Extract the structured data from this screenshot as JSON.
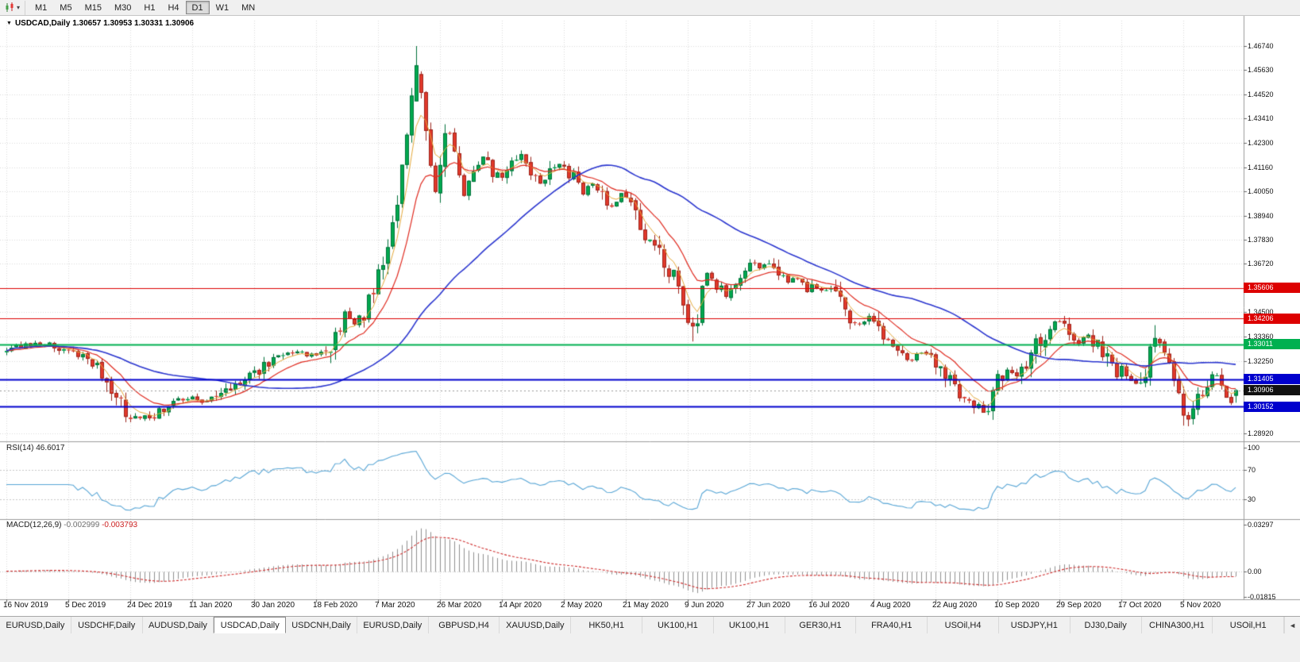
{
  "toolbar": {
    "timeframes": [
      "M1",
      "M5",
      "M15",
      "M30",
      "H1",
      "H4",
      "D1",
      "W1",
      "MN"
    ],
    "active_timeframe": "D1",
    "chart_menu_icon": "candlestick-chart-icon",
    "dropdown_arrow": "▾"
  },
  "chart": {
    "collapse_arrow": "▼",
    "title": "USDCAD,Daily",
    "ohlc_text": "1.30657 1.30953 1.30331 1.30906"
  },
  "price_axis_ticks": [
    "1.46740",
    "1.45630",
    "1.44520",
    "1.43410",
    "1.42300",
    "1.41160",
    "1.40050",
    "1.38940",
    "1.37830",
    "1.36720",
    "1.34500",
    "1.33360",
    "1.32250",
    "1.28920"
  ],
  "price_levels": [
    {
      "value": "1.35606",
      "color": "#dd0000",
      "line_width": 1
    },
    {
      "value": "1.34206",
      "color": "#dd0000",
      "line_width": 1
    },
    {
      "value": "1.33011",
      "color": "#00b050",
      "line_width": 2
    },
    {
      "value": "1.31405",
      "color": "#0000cd",
      "line_width": 2
    },
    {
      "value": "1.30152",
      "color": "#0000cd",
      "line_width": 2
    }
  ],
  "current_price": {
    "value": "1.30906",
    "label_bg": "#111111"
  },
  "rsi": {
    "label": "RSI(14)",
    "value": "46.6017",
    "axis_ticks": [
      "100",
      "70",
      "30"
    ],
    "dashed_levels": [
      70,
      30
    ],
    "line_color": "#58a6d6"
  },
  "macd": {
    "label": "MACD(12,26,9)",
    "value_main": "-0.002999",
    "value_signal": "-0.003793",
    "axis_ticks": [
      "0.03297",
      "0.00",
      "-0.01815"
    ],
    "histogram_color": "#8f8f8f",
    "signal_color": "#cf2d2d"
  },
  "date_axis": [
    "16 Nov 2019",
    "5 Dec 2019",
    "24 Dec 2019",
    "11 Jan 2020",
    "30 Jan 2020",
    "18 Feb 2020",
    "7 Mar 2020",
    "26 Mar 2020",
    "14 Apr 2020",
    "2 May 2020",
    "21 May 2020",
    "9 Jun 2020",
    "27 Jun 2020",
    "16 Jul 2020",
    "4 Aug 2020",
    "22 Aug 2020",
    "10 Sep 2020",
    "29 Sep 2020",
    "17 Oct 2020",
    "5 Nov 2020"
  ],
  "bottom_tabs": {
    "items": [
      "EURUSD,Daily",
      "USDCHF,Daily",
      "AUDUSD,Daily",
      "USDCAD,Daily",
      "USDCNH,Daily",
      "EURUSD,Daily",
      "GBPUSD,H4",
      "XAUUSD,Daily",
      "HK50,H1",
      "UK100,H1",
      "UK100,H1",
      "GER30,H1",
      "FRA40,H1",
      "USOil,H4",
      "USDJPY,H1",
      "DJ30,Daily",
      "CHINA300,H1",
      "USOil,H1"
    ],
    "active_index": 3,
    "scroll_icon": "◄"
  },
  "chart_data": {
    "type": "candlestick",
    "symbol": "USDCAD",
    "timeframe": "Daily",
    "last_ohlc": {
      "open": 1.30657,
      "high": 1.30953,
      "low": 1.30331,
      "close": 1.30906
    },
    "price_range": [
      1.28556,
      1.47909
    ],
    "candle_count": 259,
    "up_color": "#00a94f",
    "up_border": "#00713a",
    "down_color": "#e2392b",
    "down_border": "#9c241c",
    "ma_fast_color": "#e5a93a",
    "ma_mid_color": "#e02b20",
    "ma_slow_color": "#2a35cf",
    "path_anchors": [
      [
        0,
        1.3265
      ],
      [
        3,
        1.3295
      ],
      [
        6,
        1.3305
      ],
      [
        9,
        1.33
      ],
      [
        12,
        1.3272
      ],
      [
        14,
        1.3262
      ],
      [
        17,
        1.3228
      ],
      [
        20,
        1.3165
      ],
      [
        23,
        1.3062
      ],
      [
        25,
        1.2985
      ],
      [
        27,
        1.2958
      ],
      [
        29,
        1.2962
      ],
      [
        31,
        1.2978
      ],
      [
        33,
        1.3008
      ],
      [
        36,
        1.3045
      ],
      [
        39,
        1.3052
      ],
      [
        42,
        1.3032
      ],
      [
        46,
        1.3092
      ],
      [
        50,
        1.314
      ],
      [
        54,
        1.32
      ],
      [
        57,
        1.3245
      ],
      [
        61,
        1.3264
      ],
      [
        65,
        1.3248
      ],
      [
        67,
        1.327
      ],
      [
        69,
        1.333
      ],
      [
        71,
        1.3446
      ],
      [
        73,
        1.339
      ],
      [
        75,
        1.344
      ],
      [
        76,
        1.351
      ],
      [
        78,
        1.363
      ],
      [
        80,
        1.378
      ],
      [
        82,
        1.398
      ],
      [
        83,
        1.41
      ],
      [
        84,
        1.423
      ],
      [
        85,
        1.442
      ],
      [
        86,
        1.456
      ],
      [
        87,
        1.448
      ],
      [
        88,
        1.428
      ],
      [
        89,
        1.41
      ],
      [
        90,
        1.401
      ],
      [
        91,
        1.412
      ],
      [
        92,
        1.43
      ],
      [
        93,
        1.427
      ],
      [
        94,
        1.415
      ],
      [
        95,
        1.408
      ],
      [
        96,
        1.399
      ],
      [
        97,
        1.404
      ],
      [
        98,
        1.411
      ],
      [
        100,
        1.417
      ],
      [
        102,
        1.41
      ],
      [
        104,
        1.406
      ],
      [
        106,
        1.413
      ],
      [
        108,
        1.417
      ],
      [
        110,
        1.41
      ],
      [
        112,
        1.404
      ],
      [
        114,
        1.409
      ],
      [
        116,
        1.413
      ],
      [
        117,
        1.41
      ],
      [
        119,
        1.406
      ],
      [
        121,
        1.399
      ],
      [
        123,
        1.405
      ],
      [
        125,
        1.398
      ],
      [
        127,
        1.394
      ],
      [
        129,
        1.399
      ],
      [
        130,
        1.397
      ],
      [
        132,
        1.39
      ],
      [
        134,
        1.382
      ],
      [
        136,
        1.375
      ],
      [
        138,
        1.368
      ],
      [
        140,
        1.362
      ],
      [
        141,
        1.356
      ],
      [
        142,
        1.348
      ],
      [
        143,
        1.342
      ],
      [
        144,
        1.338
      ],
      [
        145,
        1.343
      ],
      [
        146,
        1.356
      ],
      [
        147,
        1.362
      ],
      [
        149,
        1.358
      ],
      [
        151,
        1.353
      ],
      [
        153,
        1.359
      ],
      [
        155,
        1.365
      ],
      [
        156,
        1.368
      ],
      [
        158,
        1.365
      ],
      [
        160,
        1.368
      ],
      [
        162,
        1.362
      ],
      [
        164,
        1.358
      ],
      [
        166,
        1.361
      ],
      [
        168,
        1.356
      ],
      [
        169,
        1.358
      ],
      [
        171,
        1.354
      ],
      [
        173,
        1.357
      ],
      [
        175,
        1.35
      ],
      [
        177,
        1.342
      ],
      [
        179,
        1.34
      ],
      [
        181,
        1.343
      ],
      [
        182,
        1.339
      ],
      [
        184,
        1.333
      ],
      [
        186,
        1.33
      ],
      [
        188,
        1.326
      ],
      [
        190,
        1.323
      ],
      [
        192,
        1.327
      ],
      [
        194,
        1.323
      ],
      [
        195,
        1.32
      ],
      [
        197,
        1.316
      ],
      [
        199,
        1.31
      ],
      [
        201,
        1.306
      ],
      [
        203,
        1.303
      ],
      [
        205,
        1.3
      ],
      [
        207,
        1.306
      ],
      [
        208,
        1.313
      ],
      [
        210,
        1.318
      ],
      [
        212,
        1.316
      ],
      [
        214,
        1.322
      ],
      [
        216,
        1.329
      ],
      [
        218,
        1.335
      ],
      [
        220,
        1.34
      ],
      [
        221,
        1.341
      ],
      [
        223,
        1.335
      ],
      [
        225,
        1.331
      ],
      [
        227,
        1.334
      ],
      [
        229,
        1.329
      ],
      [
        231,
        1.323
      ],
      [
        233,
        1.316
      ],
      [
        234,
        1.318
      ],
      [
        236,
        1.313
      ],
      [
        238,
        1.311
      ],
      [
        239,
        1.315
      ],
      [
        240,
        1.328
      ],
      [
        241,
        1.334
      ],
      [
        242,
        1.33
      ],
      [
        243,
        1.325
      ],
      [
        244,
        1.318
      ],
      [
        245,
        1.312
      ],
      [
        246,
        1.306
      ],
      [
        247,
        1.299
      ],
      [
        248,
        1.2945
      ],
      [
        249,
        1.299
      ],
      [
        250,
        1.304
      ],
      [
        251,
        1.309
      ],
      [
        252,
        1.313
      ],
      [
        253,
        1.316
      ],
      [
        254,
        1.314
      ],
      [
        255,
        1.311
      ],
      [
        256,
        1.3075
      ],
      [
        257,
        1.304
      ],
      [
        258,
        1.3091
      ]
    ],
    "forced": [
      {
        "index": 86,
        "open": 1.442,
        "close": 1.4585,
        "high": 1.4674
      },
      {
        "index": 144,
        "low": 1.3315
      },
      {
        "index": 205,
        "low": 1.2995
      },
      {
        "index": 241,
        "high": 1.339
      },
      {
        "index": 248,
        "low": 1.2925
      },
      {
        "index": 258,
        "open": 1.30657,
        "high": 1.30953,
        "low": 1.30331,
        "close": 1.30906
      }
    ]
  }
}
